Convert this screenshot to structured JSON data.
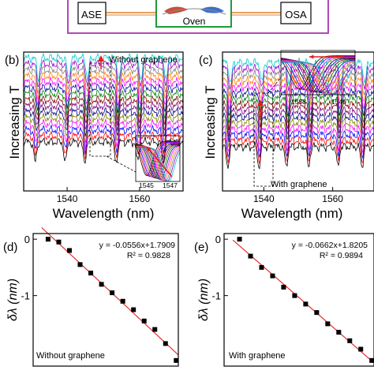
{
  "setup": {
    "source_label": "ASE",
    "analyzer_label": "OSA",
    "oven_label": "Oven",
    "colors": {
      "frame": "#b04ab8",
      "oven_box": "#1f9a3a",
      "fiber": "#d9822b",
      "element_left": "#c9503f",
      "element_right": "#3f6fc9"
    }
  },
  "panels": {
    "b": {
      "label": "(b)",
      "annotation": "Without graphene",
      "ylabel": "Increasing T",
      "inset_ticks": [
        "1545",
        "1547"
      ]
    },
    "c": {
      "label": "(c)",
      "annotation": "With graphene",
      "ylabel": "Increasing T",
      "inset_ticks": [
        "1538",
        "1540"
      ]
    },
    "d": {
      "label": "(d)",
      "annotation": "Without graphene",
      "equation": "y = -0.0556x+1.7909",
      "r2": "R² = 0.9828",
      "ylabel": "δλ (nm)"
    },
    "e": {
      "label": "(e)",
      "annotation": "With graphene",
      "equation": "y = -0.0662x+1.8205",
      "r2": "R² = 0.9894",
      "ylabel": "δλ (nm)"
    }
  },
  "chart_data": [
    {
      "id": "b",
      "type": "line",
      "xlabel": "Wavelength (nm)",
      "ylabel": "Increasing T",
      "xlim": [
        1528,
        1572
      ],
      "x_ticks": [
        1540,
        1560
      ],
      "series_count": 15,
      "series_colors": [
        "#000000",
        "#ff0000",
        "#0000ff",
        "#ff00ff",
        "#808000",
        "#000080",
        "#800080",
        "#800000",
        "#008000",
        "#0000a0",
        "#ff00ff",
        "#ff8000",
        "#808080",
        "#9900cc",
        "#00cccc"
      ]
    },
    {
      "id": "c",
      "type": "line",
      "xlabel": "Wavelength (nm)",
      "ylabel": "Increasing T",
      "xlim": [
        1528,
        1572
      ],
      "x_ticks": [
        1540,
        1560
      ],
      "series_count": 15,
      "series_colors": [
        "#000000",
        "#ff0000",
        "#0000ff",
        "#ff00ff",
        "#808000",
        "#000080",
        "#800080",
        "#800000",
        "#008000",
        "#0000a0",
        "#ff00ff",
        "#ff8000",
        "#808080",
        "#9900cc",
        "#00cccc"
      ]
    },
    {
      "id": "d",
      "type": "scatter",
      "ylabel": "δλ (nm)",
      "xlim": [
        29,
        63
      ],
      "ylim": [
        -2.25,
        0.1
      ],
      "y_ticks": [
        0,
        -1
      ],
      "x": [
        32.5,
        35,
        37.5,
        40,
        42.5,
        45,
        47.5,
        50,
        52.5,
        55,
        57.5,
        60,
        62.5
      ],
      "values": [
        0,
        -0.05,
        -0.2,
        -0.45,
        -0.6,
        -0.8,
        -0.95,
        -1.1,
        -1.25,
        -1.45,
        -1.6,
        -1.85,
        -2.15
      ],
      "fit": {
        "slope": -0.0556,
        "intercept": 1.7909
      },
      "point_color": "#000000",
      "fit_color": "#e03030"
    },
    {
      "id": "e",
      "type": "scatter",
      "ylabel": "δλ (nm)",
      "xlim": [
        29,
        63
      ],
      "ylim": [
        -2.25,
        0.1
      ],
      "y_ticks": [
        0,
        -1
      ],
      "x": [
        32.5,
        35,
        37.5,
        40,
        42.5,
        45,
        47.5,
        50,
        52.5,
        55,
        57.5,
        60,
        62.5
      ],
      "values": [
        0,
        -0.3,
        -0.5,
        -0.65,
        -0.85,
        -1.0,
        -1.15,
        -1.3,
        -1.5,
        -1.65,
        -1.8,
        -1.95,
        -2.15
      ],
      "fit": {
        "slope": -0.0662,
        "intercept": 1.8205
      },
      "point_color": "#000000",
      "fit_color": "#e03030"
    }
  ]
}
